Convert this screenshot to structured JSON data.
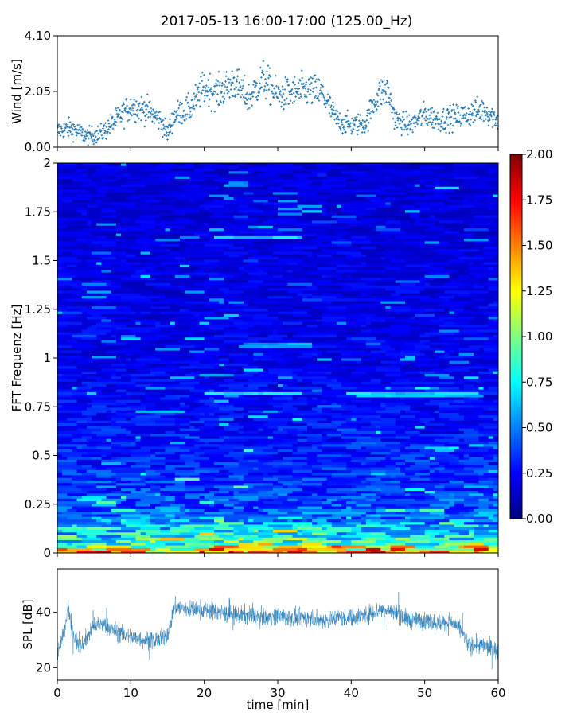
{
  "title": "2017-05-13 16:00-17:00 (125.00_Hz)",
  "colors": {
    "series": "#1f77b4",
    "colormap": [
      "#00007f",
      "#0000ff",
      "#007fff",
      "#00ffff",
      "#7fff7f",
      "#ffff00",
      "#ff7f00",
      "#ff0000",
      "#7f0000"
    ]
  },
  "chart_data": [
    {
      "type": "scatter",
      "panel": "wind",
      "ylabel": "Wind [m/s]",
      "xlim": [
        0,
        60
      ],
      "ylim": [
        0,
        4.1
      ],
      "yticks": [
        0,
        2.05,
        4.1
      ],
      "ytick_labels": [
        "0.00",
        "2.05",
        "4.10"
      ],
      "x_label_visible": false,
      "series": [
        {
          "x": [
            0,
            2,
            4,
            6,
            8,
            10,
            12,
            14,
            15,
            16,
            18,
            20,
            22,
            24,
            26,
            28,
            30,
            32,
            34,
            36,
            38,
            40,
            42,
            43,
            44,
            45,
            46,
            48,
            50,
            52,
            54,
            56,
            58,
            60
          ],
          "y": [
            0.6,
            0.7,
            0.4,
            0.5,
            1.0,
            1.5,
            1.4,
            1.0,
            0.5,
            1.2,
            1.4,
            2.2,
            2.0,
            2.4,
            1.8,
            2.5,
            1.9,
            2.0,
            2.1,
            2.0,
            1.0,
            0.8,
            0.9,
            1.6,
            2.0,
            2.1,
            1.0,
            0.8,
            1.2,
            1.0,
            1.1,
            1.2,
            1.4,
            1.0
          ]
        }
      ]
    },
    {
      "type": "heatmap",
      "panel": "spectrogram",
      "ylabel": "FFT Frequenz [Hz]",
      "xlim": [
        0,
        60
      ],
      "ylim": [
        0,
        2
      ],
      "yticks": [
        0,
        0.25,
        0.5,
        0.75,
        1,
        1.25,
        1.5,
        1.75,
        2
      ],
      "ytick_labels": [
        "0",
        "0.25",
        "0.5",
        "0.75",
        "1",
        "1.25",
        "1.5",
        "1.75",
        "2"
      ],
      "colorbar": {
        "range": [
          0,
          2
        ],
        "ticks": [
          0,
          0.25,
          0.5,
          0.75,
          1,
          1.25,
          1.5,
          1.75,
          2
        ],
        "tick_labels": [
          "0.00",
          "0.25",
          "0.50",
          "0.75",
          "1.00",
          "1.25",
          "1.50",
          "1.75",
          "2.00"
        ],
        "placement": "right"
      },
      "typical_levels": [
        {
          "f": 0.01,
          "v": 1.4
        },
        {
          "f": 0.05,
          "v": 0.8
        },
        {
          "f": 0.1,
          "v": 0.6
        },
        {
          "f": 0.25,
          "v": 0.4
        },
        {
          "f": 0.5,
          "v": 0.3
        },
        {
          "f": 1.0,
          "v": 0.22
        },
        {
          "f": 2.0,
          "v": 0.18
        }
      ],
      "lines": [
        {
          "f": 0.82,
          "x": [
            20,
            33
          ],
          "v": 0.8
        },
        {
          "f": 0.81,
          "x": [
            40,
            57
          ],
          "v": 0.7
        },
        {
          "f": 1.07,
          "x": [
            25,
            35
          ],
          "v": 0.6
        },
        {
          "f": 1.62,
          "x": [
            22,
            34
          ],
          "v": 0.7
        },
        {
          "f": 1.89,
          "x": [
            23,
            26
          ],
          "v": 0.6
        }
      ]
    },
    {
      "type": "line",
      "panel": "spl",
      "ylabel": "SPL [dB]",
      "xlabel": "time [min]",
      "xlim": [
        0,
        60
      ],
      "ylim": [
        15.5,
        55.7
      ],
      "xticks": [
        0,
        10,
        20,
        30,
        40,
        50,
        60
      ],
      "xtick_labels": [
        "0",
        "10",
        "20",
        "30",
        "40",
        "50",
        "60"
      ],
      "yticks": [
        20,
        40
      ],
      "ytick_labels": [
        "20",
        "40"
      ],
      "series": [
        {
          "x": [
            0,
            1,
            1.5,
            2,
            3,
            4,
            5,
            6,
            8,
            10,
            12,
            14,
            15,
            16,
            18,
            20,
            22,
            24,
            26,
            28,
            30,
            32,
            34,
            36,
            38,
            40,
            42,
            44,
            46,
            48,
            50,
            52,
            54,
            55,
            56,
            58,
            60
          ],
          "y": [
            25,
            33,
            42,
            33,
            28,
            31,
            35,
            36,
            33,
            31,
            30,
            30,
            32,
            42,
            41,
            41,
            40,
            39,
            39,
            38,
            39,
            38,
            38,
            37,
            38,
            38,
            39,
            41,
            40,
            37,
            37,
            36,
            36,
            33,
            28,
            28,
            26
          ]
        }
      ]
    }
  ]
}
